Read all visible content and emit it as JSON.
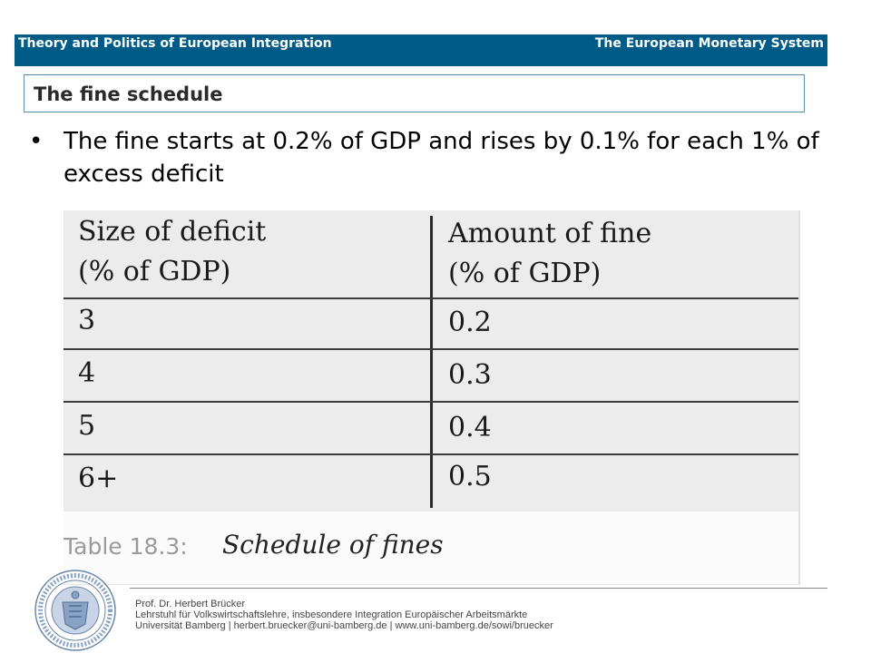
{
  "header": {
    "left": "Theory and Politics of European Integration",
    "right": "The European Monetary System"
  },
  "slide": {
    "title": "The fine schedule",
    "bullet": "The fine starts at 0.2% of GDP and rises by 0.1% for each 1% of excess deficit"
  },
  "table": {
    "headers": [
      {
        "line1": "Size of deficit",
        "line2": "(% of GDP)"
      },
      {
        "line1": "Amount of fine",
        "line2": "(% of GDP)"
      }
    ],
    "rows": [
      [
        "3",
        "0.2"
      ],
      [
        "4",
        "0.3"
      ],
      [
        "5",
        "0.4"
      ],
      [
        "6+",
        "0.5"
      ]
    ],
    "caption_label": "Table 18.3:",
    "caption_title": "Schedule of fines"
  },
  "footer": {
    "name": "Prof. Dr. Herbert Brücker",
    "chair": "Lehrstuhl für Volkswirtschaftslehre, insbesondere Integration Europäischer Arbeitsmärkte",
    "contact": "Universität Bamberg | herbert.bruecker@uni-bamberg.de | www.uni-bamberg.de/sowi/bruecker"
  },
  "colors": {
    "header_bar": "#005b86",
    "title_border": "#5d8ca8"
  },
  "icons": {
    "seal": "university-seal-icon"
  }
}
